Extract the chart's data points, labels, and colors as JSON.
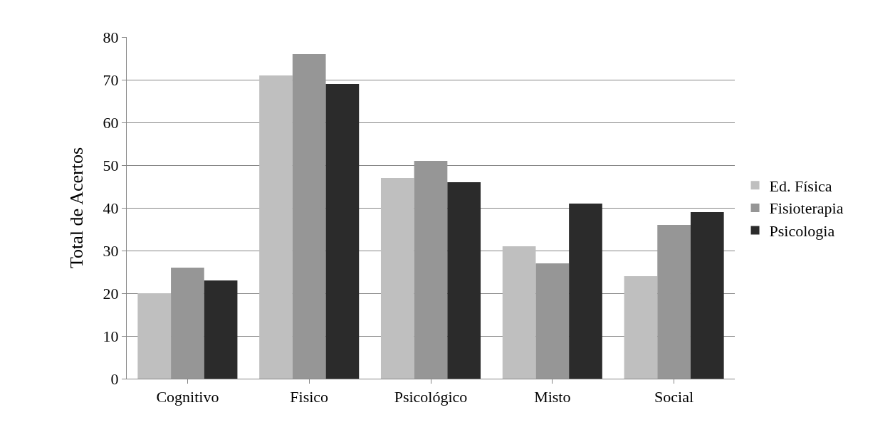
{
  "chart_data": {
    "type": "bar",
    "ylabel": "Total de Acertos",
    "categories": [
      "Cognitivo",
      "Fisico",
      "Psicológico",
      "Misto",
      "Social"
    ],
    "series": [
      {
        "name": "Ed. Física",
        "color": "#bfbfbf",
        "values": [
          20,
          71,
          47,
          31,
          24
        ]
      },
      {
        "name": "Fisioterapia",
        "color": "#969696",
        "values": [
          26,
          76,
          51,
          27,
          36
        ]
      },
      {
        "name": "Psicologia",
        "color": "#2b2b2b",
        "values": [
          23,
          69,
          46,
          41,
          39
        ]
      }
    ],
    "ylim": [
      0,
      80
    ],
    "yticks": [
      0,
      10,
      20,
      30,
      40,
      50,
      60,
      70,
      80
    ],
    "grid": "y",
    "legend": "right"
  }
}
